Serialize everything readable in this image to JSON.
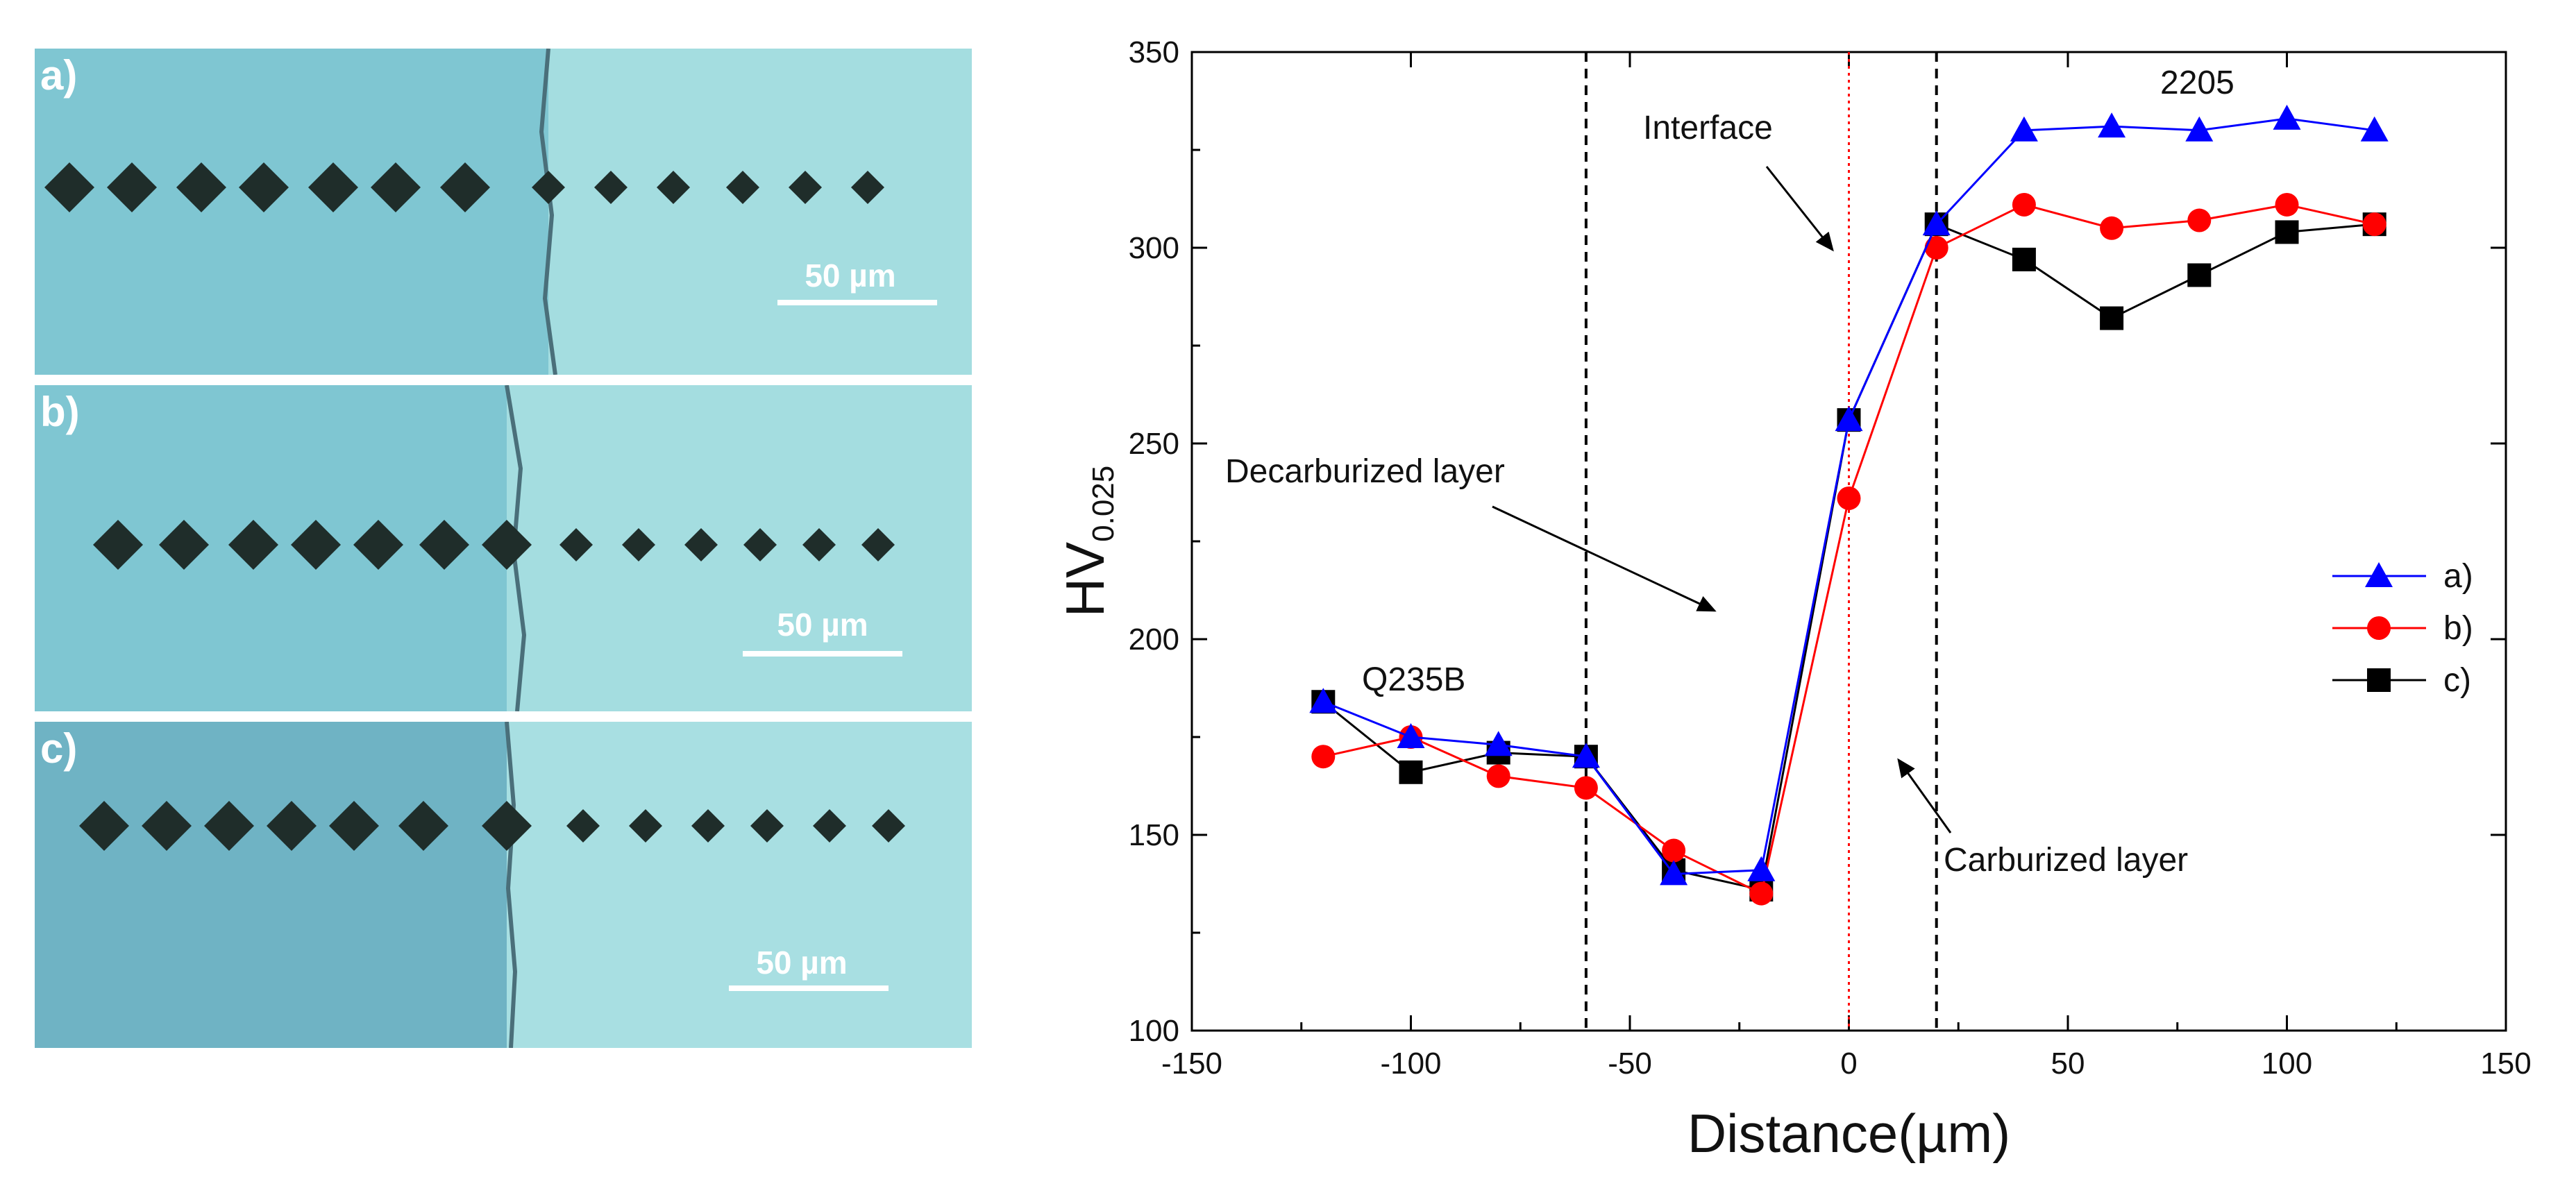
{
  "micrographs": [
    {
      "label": "a)",
      "scale": "50 µm"
    },
    {
      "label": "b)",
      "scale": "50 µm"
    },
    {
      "label": "c)",
      "scale": "50 µm"
    }
  ],
  "chart_data": {
    "type": "line",
    "xlabel": "Distance(µm)",
    "ylabel_main": "HV",
    "ylabel_sub": "0.025",
    "xlim": [
      -150,
      150
    ],
    "ylim": [
      100,
      350
    ],
    "xticks": [
      -150,
      -100,
      -50,
      0,
      50,
      100,
      150
    ],
    "yticks": [
      100,
      150,
      200,
      250,
      300,
      350
    ],
    "x": [
      -120,
      -100,
      -80,
      -60,
      -40,
      -20,
      0,
      20,
      40,
      60,
      80,
      100,
      120
    ],
    "series": [
      {
        "name": "a)",
        "color": "#0000ff",
        "marker": "triangle",
        "values": [
          184,
          175,
          173,
          170,
          140,
          141,
          256,
          306,
          330,
          331,
          330,
          333,
          330
        ]
      },
      {
        "name": "b)",
        "color": "#ff0000",
        "marker": "circle",
        "values": [
          170,
          175,
          165,
          162,
          146,
          135,
          236,
          300,
          311,
          305,
          307,
          311,
          306
        ]
      },
      {
        "name": "c)",
        "color": "#000000",
        "marker": "square",
        "values": [
          184,
          166,
          171,
          170,
          141,
          136,
          256,
          306,
          297,
          282,
          293,
          304,
          306
        ]
      }
    ],
    "vlines": [
      {
        "x": -60,
        "color": "#000000",
        "style": "dashed"
      },
      {
        "x": 0,
        "color": "#ff0000",
        "style": "dotted"
      },
      {
        "x": 20,
        "color": "#000000",
        "style": "dashed"
      }
    ],
    "annotations": {
      "interface": "Interface",
      "decarburized": "Decarburized layer",
      "carburized": "Carburized layer",
      "q235b": "Q235B",
      "s2205": "2205"
    },
    "legend_position": "right"
  }
}
